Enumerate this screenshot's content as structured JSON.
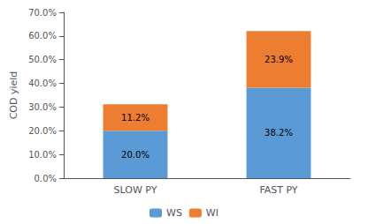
{
  "chart_data": {
    "type": "bar",
    "categories": [
      "SLOW PY",
      "FAST PY"
    ],
    "series": [
      {
        "name": "WS",
        "color": "#5B9BD5",
        "values": [
          20.0,
          38.2
        ],
        "value_labels": [
          "20.0%",
          "38.2%"
        ]
      },
      {
        "name": "WI",
        "color": "#ED7D31",
        "values": [
          11.2,
          23.9
        ],
        "value_labels": [
          "11.2%",
          "23.9%"
        ]
      }
    ],
    "stacked": true,
    "data_labels": true,
    "ylabel": "COD yield",
    "ylim": [
      0,
      70.0
    ],
    "yticks": [
      {
        "value": 0.0,
        "label": "0.0%"
      },
      {
        "value": 10.0,
        "label": "10.0%"
      },
      {
        "value": 20.0,
        "label": "20.0%"
      },
      {
        "value": 30.0,
        "label": "30.0%"
      },
      {
        "value": 40.0,
        "label": "40.0%"
      },
      {
        "value": 50.0,
        "label": "50.0%"
      },
      {
        "value": 60.0,
        "label": "60.0%"
      },
      {
        "value": 70.0,
        "label": "70.0%"
      }
    ],
    "grid": false,
    "legend": "bottom"
  }
}
